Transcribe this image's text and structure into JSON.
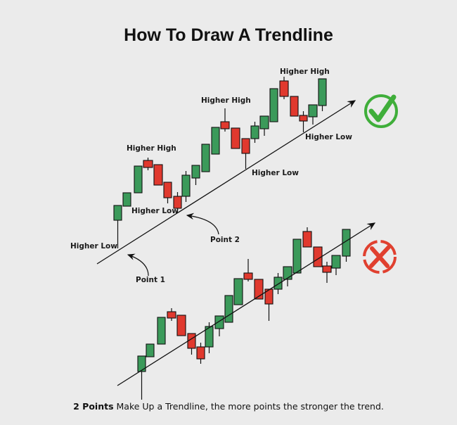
{
  "title": "How To Draw A Trendline",
  "top_chart": {
    "labels": {
      "higher_high_1": "Higher High",
      "higher_high_2": "Higher High",
      "higher_high_3": "Higher High",
      "higher_low_1": "Higher Low",
      "higher_low_2": "Higher Low",
      "higher_low_3": "Higher Low",
      "higher_low_4": "Higher Low",
      "point_1": "Point 1",
      "point_2": "Point 2"
    },
    "verdict_icon": "check-circle-icon",
    "verdict_color": "#3fae3a"
  },
  "bottom_chart": {
    "verdict_icon": "x-circle-icon",
    "verdict_color": "#e0402f"
  },
  "colors": {
    "bullish": "#3b9a5a",
    "bearish": "#e0392e",
    "background": "#ebebeb"
  },
  "caption": {
    "bold": "2 Points",
    "rest": " Make Up a Trendline, the more points the stronger the trend."
  }
}
